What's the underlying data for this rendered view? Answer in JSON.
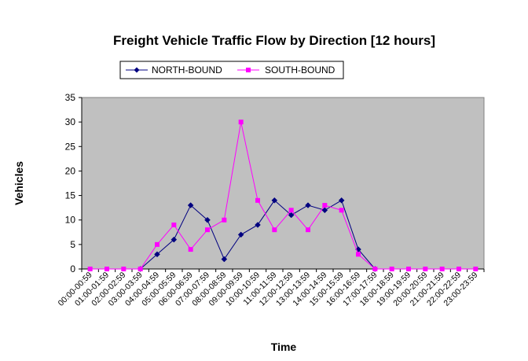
{
  "chart_data": {
    "type": "line",
    "title": "Freight Vehicle Traffic Flow by Direction [12 hours]",
    "xlabel": "Time",
    "ylabel": "Vehicles",
    "ylim": [
      0,
      35
    ],
    "yticks": [
      0,
      5,
      10,
      15,
      20,
      25,
      30,
      35
    ],
    "grid": false,
    "legend_position": "top",
    "plot_background": "#c0c0c0",
    "categories": [
      "00:00-00:59",
      "01:00-01:59",
      "02:00-02:59",
      "03:00-03:59",
      "04:00-04:59",
      "05:00-05:59",
      "06:00-06:59",
      "07:00-07:59",
      "08:00-08:59",
      "09:00-09:59",
      "10:00-10:59",
      "11:00-11:59",
      "12:00-12:59",
      "13:00-13:59",
      "14:00-14:59",
      "15:00-15:59",
      "16:00-16:59",
      "17:00-17:59",
      "18:00-18:59",
      "19:00-19:59",
      "20:00-20:59",
      "21:00-21:59",
      "22:00-22:59",
      "23:00-23:59"
    ],
    "series": [
      {
        "name": "NORTH-BOUND",
        "color": "#000080",
        "marker": "diamond",
        "values": [
          null,
          null,
          null,
          0,
          3,
          6,
          13,
          10,
          2,
          7,
          9,
          14,
          11,
          13,
          12,
          14,
          4,
          0,
          null,
          null,
          null,
          null,
          null,
          null
        ]
      },
      {
        "name": "SOUTH-BOUND",
        "color": "#ff00ff",
        "marker": "square",
        "values": [
          0,
          0,
          0,
          0,
          5,
          9,
          4,
          8,
          10,
          30,
          14,
          8,
          12,
          8,
          13,
          12,
          3,
          0,
          0,
          0,
          0,
          0,
          0,
          0
        ]
      }
    ]
  }
}
